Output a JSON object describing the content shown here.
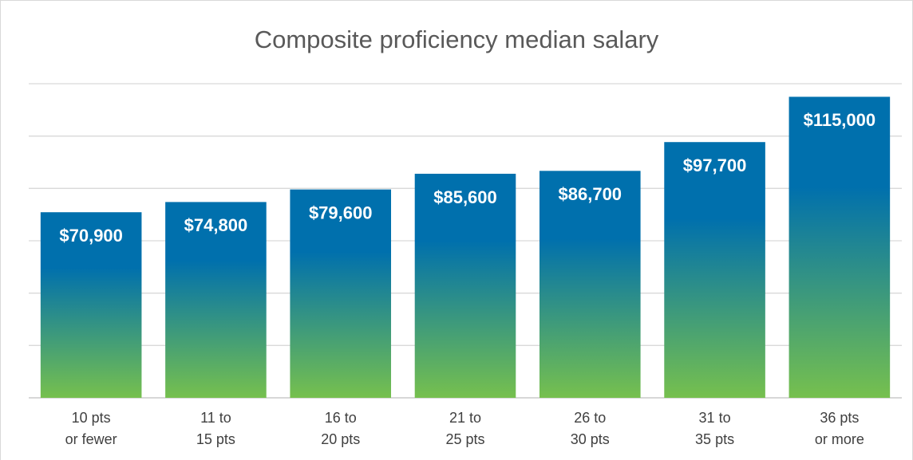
{
  "chart_data": {
    "type": "bar",
    "title": "Composite proficiency median salary",
    "categories": [
      "10 pts\nor fewer",
      "11 to\n15 pts",
      "16 to\n20 pts",
      "21 to\n25 pts",
      "26 to\n30 pts",
      "31 to\n35 pts",
      "36 pts\nor more"
    ],
    "values": [
      70900,
      74800,
      79600,
      85600,
      86700,
      97700,
      115000
    ],
    "value_labels": [
      "$70,900",
      "$74,800",
      "$79,600",
      "$85,600",
      "$86,700",
      "$97,700",
      "$115,000"
    ],
    "color": [
      "#0070ad",
      "#76c04e"
    ],
    "ylim": [
      0,
      120000
    ],
    "yticks": [
      0,
      20000,
      40000,
      60000,
      80000,
      100000,
      120000
    ],
    "grid": true
  }
}
